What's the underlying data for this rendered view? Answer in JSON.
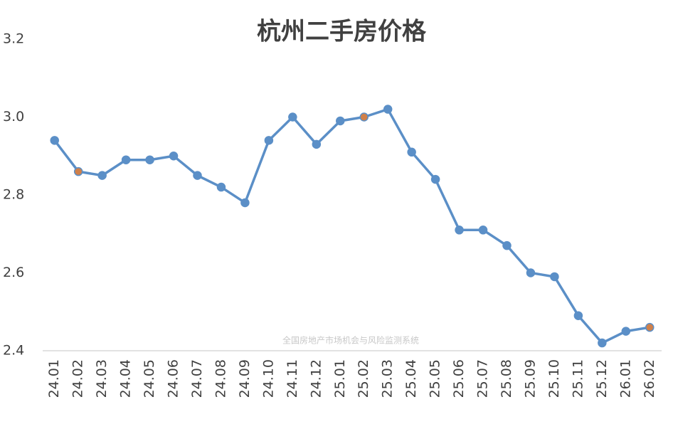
{
  "chart_data": {
    "type": "line",
    "title": "杭州二手房价格",
    "annotation": "全国房地产市场机会与风险监测系统",
    "categories": [
      "24.01",
      "24.02",
      "24.03",
      "24.04",
      "24.05",
      "24.06",
      "24.07",
      "24.08",
      "24.09",
      "24.10",
      "24.11",
      "24.12",
      "25.01",
      "25.02",
      "25.03",
      "25.04",
      "25.05",
      "25.06",
      "25.07",
      "25.08",
      "25.09",
      "25.10",
      "25.11",
      "25.12",
      "26.01",
      "26.02"
    ],
    "series": [
      {
        "color": "#5b8fc7",
        "values": [
          2.94,
          2.86,
          2.85,
          2.89,
          2.89,
          2.9,
          2.85,
          2.82,
          2.78,
          2.94,
          3.0,
          2.93,
          2.99,
          3.0,
          3.02,
          2.91,
          2.84,
          2.71,
          2.71,
          2.67,
          2.6,
          2.59,
          2.49,
          2.42,
          2.45,
          2.46
        ],
        "marker_colors": [
          "#5b8fc7",
          "#d0804a",
          "#5b8fc7",
          "#5b8fc7",
          "#5b8fc7",
          "#5b8fc7",
          "#5b8fc7",
          "#5b8fc7",
          "#5b8fc7",
          "#5b8fc7",
          "#5b8fc7",
          "#5b8fc7",
          "#5b8fc7",
          "#d0804a",
          "#5b8fc7",
          "#5b8fc7",
          "#5b8fc7",
          "#5b8fc7",
          "#5b8fc7",
          "#5b8fc7",
          "#5b8fc7",
          "#5b8fc7",
          "#5b8fc7",
          "#5b8fc7",
          "#5b8fc7",
          "#d0804a"
        ]
      }
    ],
    "ylim": [
      2.4,
      3.2
    ],
    "yticks": [
      2.4,
      2.6,
      2.8,
      {
        "value": 3,
        "label": "3.0"
      },
      3.2
    ],
    "grid": false
  }
}
